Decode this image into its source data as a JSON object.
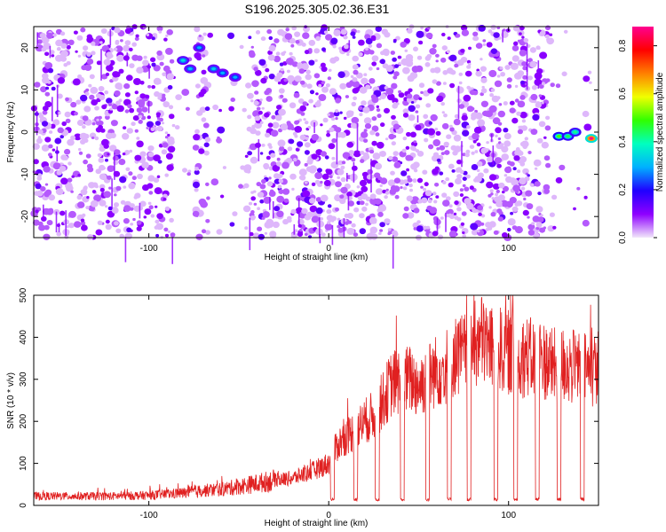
{
  "title": "S196.2025.305.02.36.E31",
  "chart_data": [
    {
      "type": "heatmap",
      "xlabel": "Height of straight line (km)",
      "ylabel": "Frequency (Hz)",
      "xlim": [
        -164,
        150
      ],
      "ylim": [
        -25,
        25
      ],
      "xticks": [
        -100,
        0,
        100
      ],
      "xtick_labels": [
        "-100",
        "0",
        "100"
      ],
      "yticks": [
        -20,
        -10,
        0,
        10,
        20
      ],
      "ytick_labels": [
        "-20",
        "-10",
        "0",
        "10",
        "20"
      ],
      "colorbar": {
        "label": "Normalized spectral amplitude",
        "range": [
          0,
          0.88
        ],
        "ticks": [
          0,
          0.2,
          0.4,
          0.6,
          0.8
        ],
        "tick_labels": [
          "0.0",
          "0.2",
          "0.4",
          "0.6",
          "0.8"
        ],
        "colors": [
          "#f2e6fa",
          "#8e00ff",
          "#2000ff",
          "#00b0ff",
          "#00ffc0",
          "#30ff00",
          "#f0ff00",
          "#ff8000",
          "#ff0000",
          "#ff0090"
        ]
      },
      "blank_regions_km": [
        [
          -87,
          -74
        ],
        [
          -67,
          -46
        ],
        [
          122,
          150
        ]
      ],
      "hotspots": [
        {
          "x_km": -81,
          "freq_hz": 17,
          "value": 0.35
        },
        {
          "x_km": -77,
          "freq_hz": 15,
          "value": 0.32
        },
        {
          "x_km": -72,
          "freq_hz": 20,
          "value": 0.3
        },
        {
          "x_km": -64,
          "freq_hz": 15,
          "value": 0.33
        },
        {
          "x_km": -59,
          "freq_hz": 14,
          "value": 0.3
        },
        {
          "x_km": -52,
          "freq_hz": 13,
          "value": 0.3
        },
        {
          "x_km": 128,
          "freq_hz": -1,
          "value": 0.5
        },
        {
          "x_km": 133,
          "freq_hz": -1,
          "value": 0.45
        },
        {
          "x_km": 137,
          "freq_hz": 0,
          "value": 0.42
        },
        {
          "x_km": 146,
          "freq_hz": -1.5,
          "value": 0.88
        }
      ]
    },
    {
      "type": "line",
      "xlabel": "Height of straight line (km)",
      "ylabel": "SNR (10 * v/v)",
      "xlim": [
        -164,
        150
      ],
      "ylim": [
        0,
        500
      ],
      "xticks": [
        -100,
        0,
        100
      ],
      "xtick_labels": [
        "-100",
        "0",
        "100"
      ],
      "yticks": [
        0,
        100,
        200,
        300,
        400,
        500
      ],
      "ytick_labels": [
        "0",
        "100",
        "200",
        "300",
        "400",
        "500"
      ],
      "color": "#e02020",
      "series": [
        {
          "name": "SNR",
          "x": [
            -164,
            -140,
            -120,
            -100,
            -80,
            -70,
            -60,
            -50,
            -40,
            -30,
            -20,
            -10,
            0,
            5,
            10,
            15,
            20,
            25,
            30,
            35,
            40,
            45,
            50,
            55,
            60,
            65,
            70,
            75,
            80,
            85,
            90,
            95,
            100,
            105,
            110,
            115,
            120,
            125,
            130,
            135,
            140,
            145,
            150
          ],
          "values": [
            22,
            22,
            22,
            24,
            30,
            35,
            38,
            45,
            52,
            60,
            65,
            80,
            100,
            145,
            165,
            180,
            200,
            215,
            250,
            290,
            295,
            300,
            285,
            305,
            320,
            330,
            355,
            360,
            375,
            395,
            380,
            370,
            365,
            350,
            355,
            345,
            345,
            330,
            335,
            330,
            325,
            320,
            330
          ]
        }
      ],
      "dropouts_km": [
        2,
        15,
        27,
        41,
        55,
        67,
        78,
        93,
        104,
        116,
        128,
        141
      ],
      "dropout_level": 10
    }
  ]
}
